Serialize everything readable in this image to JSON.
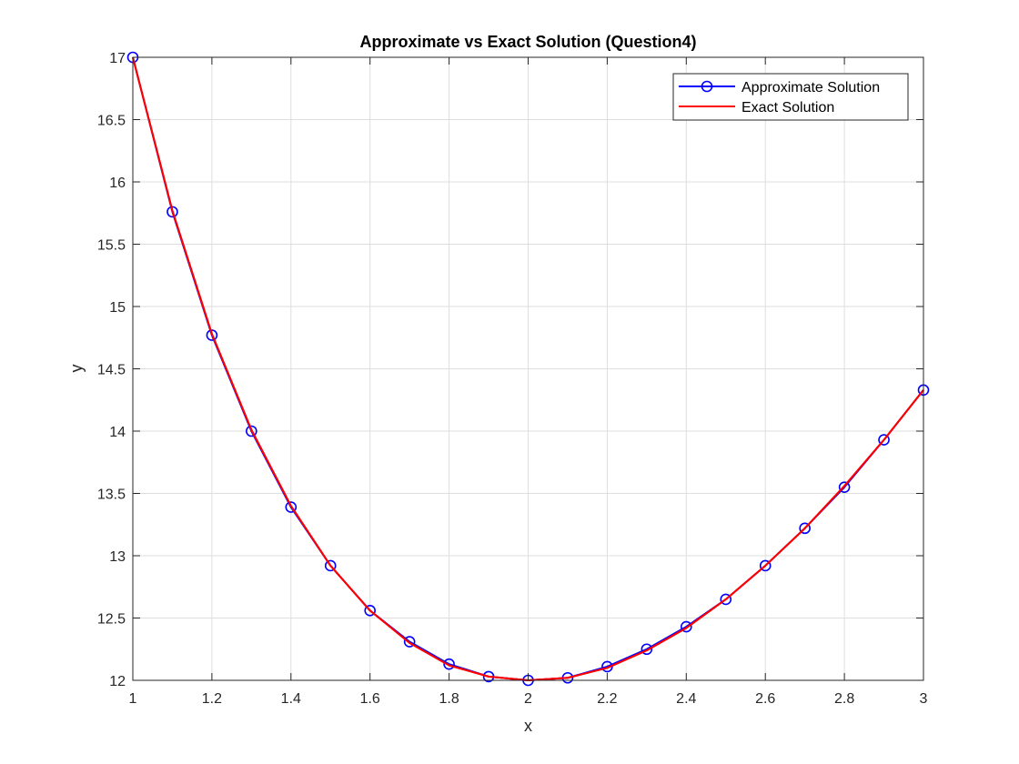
{
  "chart_data": {
    "type": "line",
    "title": "Approximate vs Exact Solution (Question4)",
    "xlabel": "x",
    "ylabel": "y",
    "xlim": [
      1,
      3
    ],
    "ylim": [
      12,
      17
    ],
    "xticks": [
      1,
      1.2,
      1.4,
      1.6,
      1.8,
      2,
      2.2,
      2.4,
      2.6,
      2.8,
      3
    ],
    "yticks": [
      12,
      12.5,
      13,
      13.5,
      14,
      14.5,
      15,
      15.5,
      16,
      16.5,
      17
    ],
    "grid": true,
    "legend_position": "top-right",
    "series": [
      {
        "name": "Approximate Solution",
        "color": "#0000ff",
        "marker": "circle",
        "x": [
          1,
          1.1,
          1.2,
          1.3,
          1.4,
          1.5,
          1.6,
          1.7,
          1.8,
          1.9,
          2,
          2.1,
          2.2,
          2.3,
          2.4,
          2.5,
          2.6,
          2.7,
          2.8,
          2.9,
          3
        ],
        "values": [
          17,
          15.76,
          14.77,
          14.0,
          13.39,
          12.92,
          12.56,
          12.31,
          12.13,
          12.03,
          12.0,
          12.02,
          12.11,
          12.25,
          12.43,
          12.65,
          12.92,
          13.22,
          13.55,
          13.93,
          14.33
        ]
      },
      {
        "name": "Exact Solution",
        "color": "#ff0000",
        "marker": "none",
        "x": [
          1,
          1.1,
          1.2,
          1.3,
          1.4,
          1.5,
          1.6,
          1.7,
          1.8,
          1.9,
          2,
          2.1,
          2.2,
          2.3,
          2.4,
          2.5,
          2.6,
          2.7,
          2.8,
          2.9,
          3
        ],
        "values": [
          17,
          15.77,
          14.78,
          14.01,
          13.4,
          12.92,
          12.56,
          12.3,
          12.12,
          12.03,
          12.0,
          12.02,
          12.1,
          12.24,
          12.42,
          12.65,
          12.92,
          13.22,
          13.56,
          13.93,
          14.33
        ]
      }
    ]
  }
}
